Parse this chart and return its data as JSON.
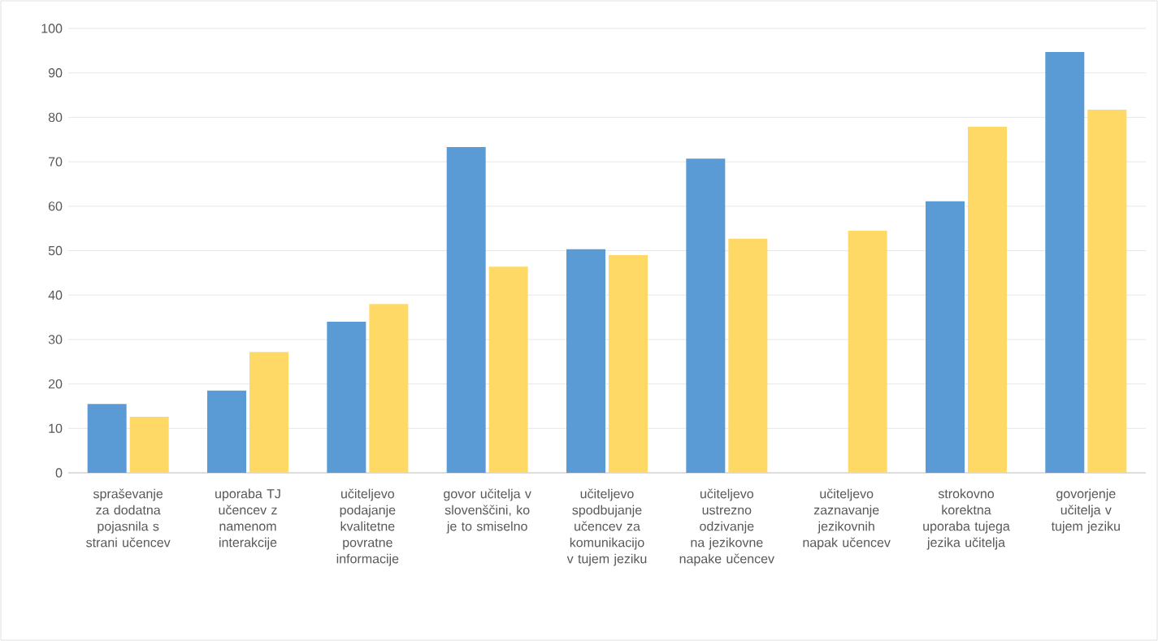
{
  "chart_data": {
    "type": "bar",
    "categories": [
      "spraševanje za dodatna pojasnila s strani učencev",
      "uporaba TJ učencev z namenom interakcije",
      "učiteljevo podajanje kvalitetne povratne informacije",
      "govor učitelja v slovenščini, ko je to smiselno",
      "učiteljevo spodbujanje učencev za komunikacijo v tujem jeziku",
      "učiteljevo ustrezno odzivanje na jezikovne napake učencev",
      "učiteljevo zaznavanje jezikovnih napak učencev",
      "strokovno korektna uporaba tujega jezika učitelja",
      "govorjenje učitelja v tujem jeziku"
    ],
    "series": [
      {
        "color": "#5b9bd5",
        "values": [
          15.5,
          18.5,
          34,
          73.3,
          50.3,
          70.7,
          null,
          61.1,
          94.7
        ]
      },
      {
        "color": "#ffd966",
        "values": [
          12.6,
          27.2,
          38,
          46.4,
          49,
          52.7,
          54.5,
          77.9,
          81.7
        ]
      }
    ],
    "ylim": [
      0,
      100
    ],
    "yticks": [
      0,
      10,
      20,
      30,
      40,
      50,
      60,
      70,
      80,
      90,
      100
    ],
    "grid": "y"
  }
}
